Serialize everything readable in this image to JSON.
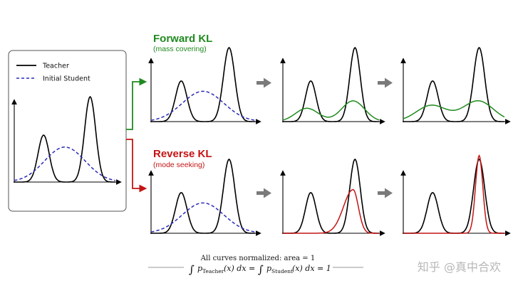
{
  "legend": {
    "teacher_label": "Teacher",
    "student_label": "Initial Student"
  },
  "forward": {
    "title": "Forward KL",
    "subtitle": "(mass covering)"
  },
  "reverse": {
    "title": "Reverse KL",
    "subtitle": "(mode seeking)"
  },
  "footer": {
    "note": "All curves normalized: area = 1",
    "eq_integral_1": "∫",
    "eq_p_1": "p",
    "eq_sub_1": "Teacher",
    "eq_rest_1": "(x) dx =",
    "eq_integral_2": "∫",
    "eq_p_2": "p",
    "eq_sub_2": "Student",
    "eq_rest_2": "(x) dx = 1"
  },
  "watermark": "知乎 @真中合欢",
  "colors": {
    "teacher": "#000000",
    "initial_student": "#2b2bb8",
    "forward": "#1f8a1f",
    "reverse": "#c41414",
    "arrow_gray": "#7a7a7a"
  }
}
